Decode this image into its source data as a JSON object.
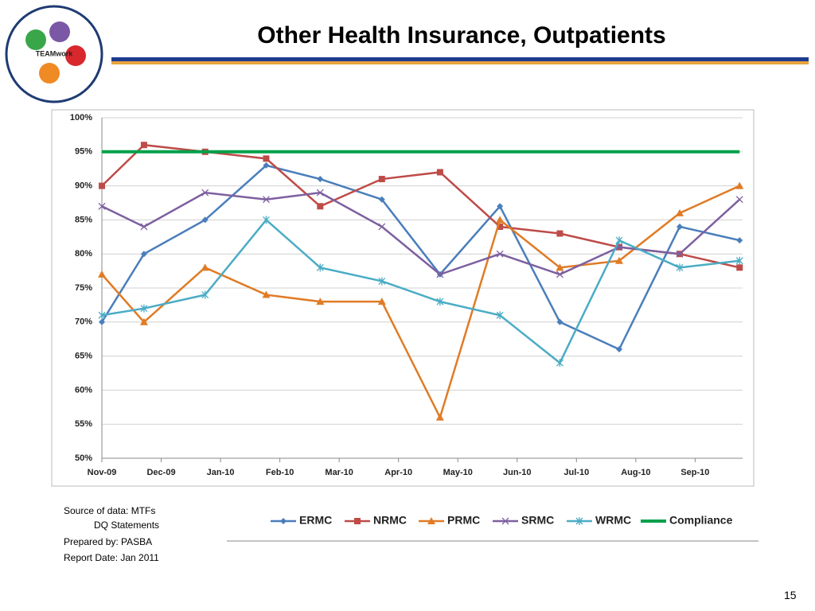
{
  "slide": {
    "title": "Other Health Insurance, Outpatients",
    "logo_text": "TEAMwork",
    "notes": [
      "Source of data:  MTFs",
      "DQ Statements",
      "Prepared by:  PASBA",
      "Report Date: Jan 2011"
    ],
    "page_number": "15"
  },
  "chart_data": {
    "type": "line",
    "x": [
      0,
      0.71,
      1.74,
      2.77,
      3.68,
      4.72,
      5.7,
      6.71,
      7.72,
      8.72,
      9.74,
      10.75
    ],
    "xlim": [
      0,
      10.8
    ],
    "xticks": [
      {
        "value": 0,
        "label": "Nov-09"
      },
      {
        "value": 1,
        "label": "Dec-09"
      },
      {
        "value": 2,
        "label": "Jan-10"
      },
      {
        "value": 3,
        "label": "Feb-10"
      },
      {
        "value": 4,
        "label": "Mar-10"
      },
      {
        "value": 5,
        "label": "Apr-10"
      },
      {
        "value": 6,
        "label": "May-10"
      },
      {
        "value": 7,
        "label": "Jun-10"
      },
      {
        "value": 8,
        "label": "Jul-10"
      },
      {
        "value": 9,
        "label": "Aug-10"
      },
      {
        "value": 10,
        "label": "Sep-10"
      }
    ],
    "ylim": [
      50,
      100
    ],
    "yticks": [
      {
        "value": 50,
        "label": "50%"
      },
      {
        "value": 55,
        "label": "55%"
      },
      {
        "value": 60,
        "label": "60%"
      },
      {
        "value": 65,
        "label": "65%"
      },
      {
        "value": 70,
        "label": "70%"
      },
      {
        "value": 75,
        "label": "75%"
      },
      {
        "value": 80,
        "label": "80%"
      },
      {
        "value": 85,
        "label": "85%"
      },
      {
        "value": 90,
        "label": "90%"
      },
      {
        "value": 95,
        "label": "95%"
      },
      {
        "value": 100,
        "label": "100%"
      }
    ],
    "grid": true,
    "legend": "bottom",
    "series": [
      {
        "name": "ERMC",
        "color": "#4a7ebb",
        "marker": "diamond",
        "values": [
          70,
          80,
          85,
          93,
          91,
          88,
          77,
          87,
          70,
          66,
          84,
          82
        ]
      },
      {
        "name": "NRMC",
        "color": "#be4b48",
        "marker": "square",
        "values": [
          90,
          96,
          95,
          94,
          87,
          91,
          92,
          84,
          83,
          81,
          80,
          78
        ]
      },
      {
        "name": "PRMC",
        "color": "#e07b25",
        "marker": "triangle",
        "values": [
          77,
          70,
          78,
          74,
          73,
          73,
          56,
          85,
          78,
          79,
          86,
          90
        ]
      },
      {
        "name": "SRMC",
        "color": "#7d5fa0",
        "marker": "x",
        "values": [
          87,
          84,
          89,
          88,
          89,
          84,
          77,
          80,
          77,
          81,
          80,
          88
        ]
      },
      {
        "name": "WRMC",
        "color": "#4aacc5",
        "marker": "star",
        "values": [
          71,
          72,
          74,
          85,
          78,
          76,
          73,
          71,
          64,
          82,
          78,
          79
        ]
      },
      {
        "name": "Compliance",
        "color": "#00a04a",
        "marker": "none",
        "width": 4,
        "values": [
          95,
          95,
          95,
          95,
          95,
          95,
          95,
          95,
          95,
          95,
          95,
          95
        ]
      }
    ]
  }
}
